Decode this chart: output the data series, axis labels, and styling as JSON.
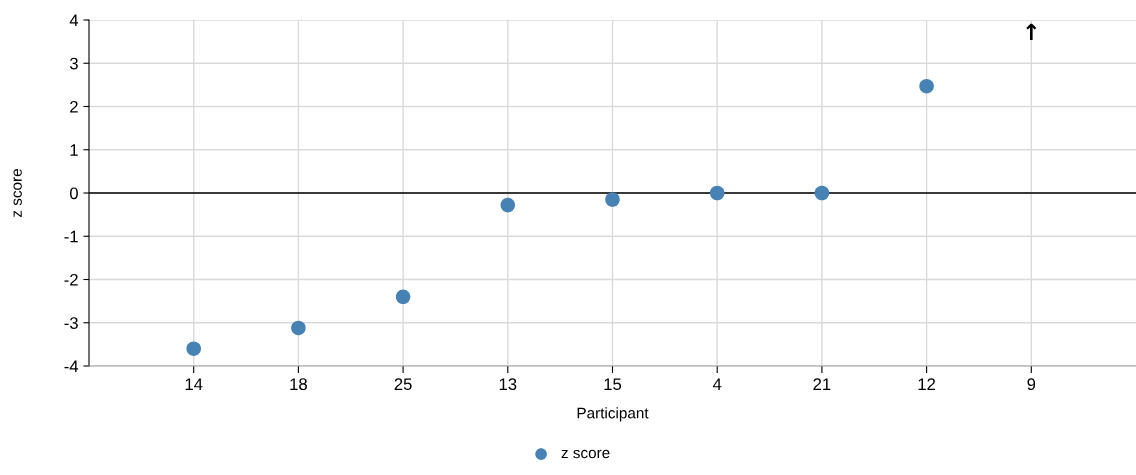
{
  "chart_data": {
    "type": "scatter",
    "xlabel": "Participant",
    "ylabel": "z score",
    "categories": [
      "14",
      "18",
      "25",
      "13",
      "15",
      "4",
      "21",
      "12",
      "9"
    ],
    "series": [
      {
        "name": "z score",
        "color": "#4682b4",
        "values": [
          -3.6,
          -3.12,
          -2.4,
          -0.28,
          -0.15,
          0.0,
          0.0,
          2.47,
          null
        ]
      }
    ],
    "annotations": [
      "↑"
    ],
    "ylim": [
      -4,
      4
    ],
    "yticks": [
      {
        "value": -4,
        "label": "-4"
      },
      {
        "value": -3,
        "label": "-3"
      },
      {
        "value": -2,
        "label": "-2"
      },
      {
        "value": -1,
        "label": "-1"
      },
      0,
      1,
      2,
      3,
      4
    ],
    "ref_lines": [
      {
        "axis": "y",
        "value": 0,
        "color": "#000000"
      }
    ],
    "grid": true,
    "legend": "bottom",
    "marker": "circle"
  }
}
